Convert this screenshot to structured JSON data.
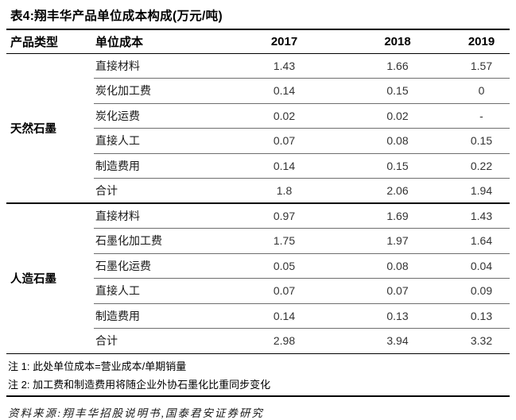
{
  "title": "表4:翔丰华产品单位成本构成(万元/吨)",
  "table": {
    "headers": [
      "产品类型",
      "单位成本",
      "2017",
      "2018",
      "2019"
    ],
    "groups": [
      {
        "name": "天然石墨",
        "rows": [
          {
            "label": "直接材料",
            "values": [
              "1.43",
              "1.66",
              "1.57"
            ]
          },
          {
            "label": "炭化加工费",
            "values": [
              "0.14",
              "0.15",
              "0"
            ]
          },
          {
            "label": "炭化运费",
            "values": [
              "0.02",
              "0.02",
              "-"
            ]
          },
          {
            "label": "直接人工",
            "values": [
              "0.07",
              "0.08",
              "0.15"
            ]
          },
          {
            "label": "制造费用",
            "values": [
              "0.14",
              "0.15",
              "0.22"
            ]
          },
          {
            "label": "合计",
            "values": [
              "1.8",
              "2.06",
              "1.94"
            ]
          }
        ]
      },
      {
        "name": "人造石墨",
        "rows": [
          {
            "label": "直接材料",
            "values": [
              "0.97",
              "1.69",
              "1.43"
            ]
          },
          {
            "label": "石墨化加工费",
            "values": [
              "1.75",
              "1.97",
              "1.64"
            ]
          },
          {
            "label": "石墨化运费",
            "values": [
              "0.05",
              "0.08",
              "0.04"
            ]
          },
          {
            "label": "直接人工",
            "values": [
              "0.07",
              "0.07",
              "0.09"
            ]
          },
          {
            "label": "制造费用",
            "values": [
              "0.14",
              "0.13",
              "0.13"
            ]
          },
          {
            "label": "合计",
            "values": [
              "2.98",
              "3.94",
              "3.32"
            ]
          }
        ]
      }
    ]
  },
  "notes": [
    "注 1: 此处单位成本=营业成本/单期销量",
    "注 2: 加工费和制造费用将随企业外协石墨化比重同步变化"
  ],
  "source": "资料来源:翔丰华招股说明书,国泰君安证券研究",
  "colors": {
    "rule_strong": "#000000",
    "row_separator": "#6e6e6e",
    "value_text": "#333333"
  }
}
